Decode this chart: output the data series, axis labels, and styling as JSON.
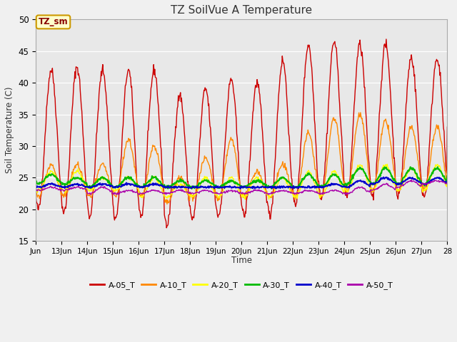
{
  "title": "TZ SoilVue A Temperature",
  "ylabel": "Soil Temperature (C)",
  "xlabel": "Time",
  "ylim": [
    15,
    50
  ],
  "figure_facecolor": "#f0f0f0",
  "axes_facecolor": "#e8e8e8",
  "annotation_text": "TZ_sm",
  "annotation_bg": "#ffffcc",
  "annotation_border": "#cc9900",
  "series": {
    "A-05_T": {
      "color": "#cc0000",
      "linewidth": 1.0
    },
    "A-10_T": {
      "color": "#ff8800",
      "linewidth": 1.0
    },
    "A-20_T": {
      "color": "#ffff00",
      "linewidth": 1.0
    },
    "A-30_T": {
      "color": "#00bb00",
      "linewidth": 1.5
    },
    "A-40_T": {
      "color": "#0000cc",
      "linewidth": 1.5
    },
    "A-50_T": {
      "color": "#aa00aa",
      "linewidth": 1.0
    }
  },
  "xtick_labels": [
    "Jun",
    "13Jun",
    "14Jun",
    "15Jun",
    "16Jun",
    "17Jun",
    "18Jun",
    "19Jun",
    "20Jun",
    "21Jun",
    "22Jun",
    "23Jun",
    "24Jun",
    "25Jun",
    "26Jun",
    "27Jun",
    "28"
  ],
  "ytick_values": [
    15,
    20,
    25,
    30,
    35,
    40,
    45,
    50
  ],
  "a05_peaks": [
    42,
    42.5,
    42,
    42,
    42,
    38,
    39,
    40.5,
    40,
    43.5,
    46,
    46.5,
    46,
    46,
    44,
    44
  ],
  "a05_troughs": [
    20,
    19.5,
    19,
    18.5,
    19,
    17.5,
    18.5,
    19,
    19,
    19,
    21,
    22,
    22,
    22,
    22,
    22
  ],
  "a10_peaks": [
    27,
    27,
    27,
    31,
    30,
    25,
    28,
    31,
    26,
    27,
    32,
    34.5,
    35,
    34,
    33,
    33
  ],
  "a10_troughs": [
    22,
    22,
    22,
    22,
    22,
    21,
    22,
    21.5,
    22,
    22,
    22,
    22,
    23,
    23,
    23,
    23
  ],
  "a20_peaks": [
    26,
    26,
    25,
    25,
    25,
    24,
    25,
    25,
    25,
    25,
    26,
    26,
    27,
    27,
    26.5,
    27
  ],
  "a20_troughs": [
    23,
    23,
    23,
    23,
    22,
    22,
    22,
    22,
    22,
    22,
    22,
    22,
    23,
    23,
    23,
    23
  ],
  "a30_peaks": [
    25.5,
    25,
    25,
    25,
    25,
    24.5,
    24.5,
    24.5,
    24.5,
    25,
    25.5,
    25.5,
    26.5,
    26.5,
    26.5,
    26.5
  ],
  "a30_troughs": [
    24,
    24,
    23.5,
    23.5,
    23.5,
    23.5,
    23.5,
    23.5,
    23.5,
    23.5,
    23.5,
    23.5,
    24,
    24,
    24,
    24
  ],
  "a40_peaks": [
    24,
    24,
    24,
    24,
    24,
    23.5,
    23.5,
    23.5,
    23.5,
    23.5,
    23.5,
    24,
    24.5,
    25,
    25,
    25
  ],
  "a40_troughs": [
    23.5,
    23.5,
    23.5,
    23.5,
    23.5,
    23.5,
    23.5,
    23.5,
    23.5,
    23.5,
    23.5,
    23.5,
    23.5,
    24,
    24,
    24
  ],
  "a50_peaks": [
    23.5,
    23.5,
    23.5,
    23,
    23,
    23,
    23,
    23,
    23,
    23,
    23,
    23,
    23.5,
    24,
    24.5,
    24.5
  ],
  "a50_troughs": [
    23,
    23,
    22.5,
    22.5,
    22.5,
    22.5,
    22.5,
    22.5,
    22.5,
    22.5,
    22.5,
    22.5,
    22.5,
    23,
    23.5,
    24
  ]
}
